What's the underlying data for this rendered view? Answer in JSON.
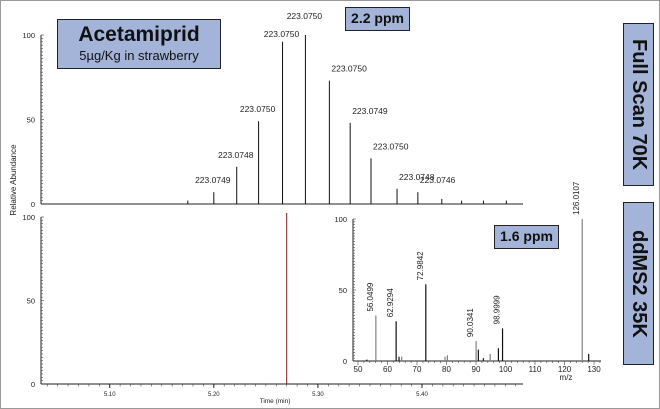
{
  "title_box": {
    "compound": "Acetamiprid",
    "sample": "5µg/Kg in strawberry"
  },
  "ppm_full": "2.2 ppm",
  "ppm_ms2": "1.6 ppm",
  "side_labels": {
    "full_scan": "Full Scan 70K",
    "ddms2": "ddMS2 35K"
  },
  "colors": {
    "box_fill": "#a3b4d8",
    "marker_line": "#8b1a1a",
    "grey_peak": "#808080"
  },
  "chart_data": [
    {
      "type": "bar",
      "panel": "top",
      "xlabel": "",
      "ylabel": "Relative Abundance",
      "xlim": [
        5.034,
        5.497
      ],
      "ylim": [
        0,
        100
      ],
      "yticks": [
        "0",
        "50",
        "100"
      ],
      "x": [
        5.175,
        5.2,
        5.222,
        5.243,
        5.266,
        5.288,
        5.311,
        5.331,
        5.351,
        5.376,
        5.396,
        5.419,
        5.438,
        5.459,
        5.481
      ],
      "values": [
        2,
        7,
        22,
        49,
        96,
        100,
        73,
        48,
        27,
        9,
        7,
        3,
        2,
        2,
        2
      ],
      "labels": [
        "",
        "223.0749",
        "223.0748",
        "223.0750",
        "223.0750",
        "223.0750",
        "223.0750",
        "223.0749",
        "223.0750",
        "223.0748",
        "223.0746",
        "",
        "",
        "",
        ""
      ]
    },
    {
      "type": "line",
      "panel": "bottom",
      "xlabel": "Time (min)",
      "xlim": [
        5.034,
        5.497
      ],
      "ylim": [
        0,
        100
      ],
      "yticks": [
        "0",
        "50",
        "100"
      ],
      "xticks": [
        "5.10",
        "5.20",
        "5.30",
        "5.40"
      ],
      "marker_time": 5.27
    },
    {
      "type": "bar",
      "panel": "inset",
      "xlabel": "m/z",
      "xlim": [
        50,
        132
      ],
      "ylim": [
        0,
        100
      ],
      "yticks": [
        "0",
        "50",
        "100"
      ],
      "xticks": [
        "50",
        "60",
        "70",
        "80",
        "90",
        "100",
        "110",
        "120",
        "130"
      ],
      "peaks": [
        {
          "mz": 53,
          "value": 1,
          "label": "",
          "grey": false
        },
        {
          "mz": 56.0499,
          "value": 32,
          "label": "56.0499",
          "grey": true
        },
        {
          "mz": 62.9294,
          "value": 28,
          "label": "62.9294",
          "grey": false
        },
        {
          "mz": 63.9,
          "value": 3,
          "label": "",
          "grey": false
        },
        {
          "mz": 64.8,
          "value": 3,
          "label": "",
          "grey": true
        },
        {
          "mz": 72.9842,
          "value": 54,
          "label": "72.9842",
          "grey": false
        },
        {
          "mz": 79.5,
          "value": 3,
          "label": "",
          "grey": true
        },
        {
          "mz": 80.3,
          "value": 4,
          "label": "",
          "grey": true
        },
        {
          "mz": 90.0341,
          "value": 14,
          "label": "90.0341",
          "grey": true
        },
        {
          "mz": 90.8,
          "value": 8,
          "label": "",
          "grey": false
        },
        {
          "mz": 92.5,
          "value": 2,
          "label": "",
          "grey": false
        },
        {
          "mz": 94.8,
          "value": 5,
          "label": "",
          "grey": true
        },
        {
          "mz": 97.6,
          "value": 9,
          "label": "",
          "grey": false
        },
        {
          "mz": 98.9999,
          "value": 23,
          "label": "98.9999",
          "grey": false
        },
        {
          "mz": 126.0107,
          "value": 100,
          "label": "126.0107",
          "grey": true
        },
        {
          "mz": 128.2,
          "value": 5,
          "label": "",
          "grey": false
        }
      ]
    }
  ]
}
